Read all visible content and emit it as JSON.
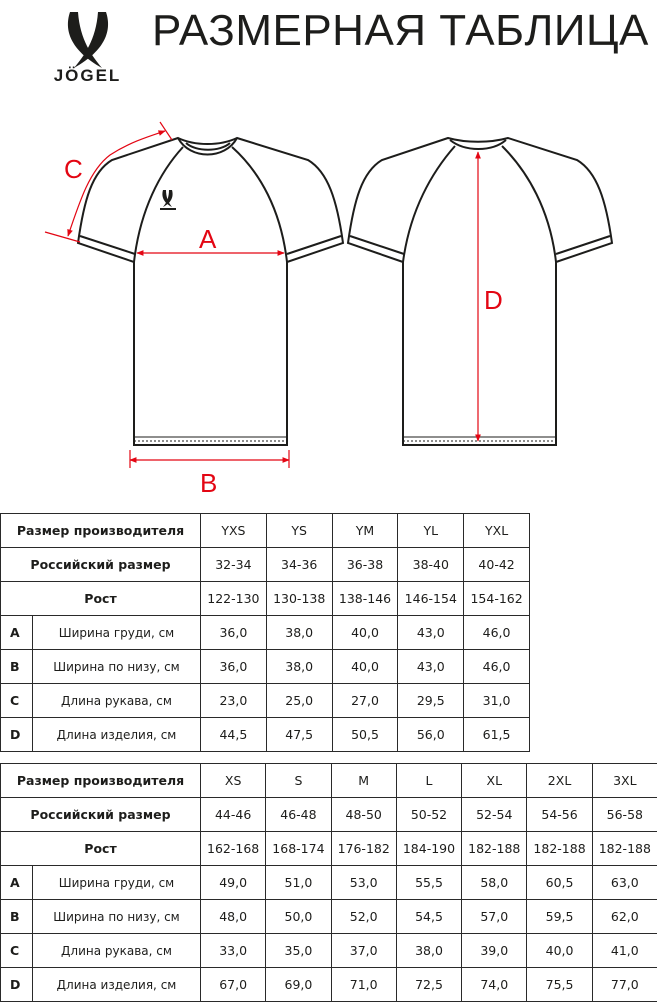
{
  "brand": {
    "logo_text": "JÖGEL"
  },
  "title": "РАЗМЕРНАЯ ТАБЛИЦА",
  "diagram": {
    "labels": {
      "a": "A",
      "b": "B",
      "c": "C",
      "d": "D"
    },
    "measure_color": "#e30613"
  },
  "row_labels": {
    "maker_size": "Размер производителя",
    "russian_size": "Российский размер",
    "height": "Рост",
    "measures": [
      {
        "letter": "A",
        "name": "Ширина груди, см"
      },
      {
        "letter": "B",
        "name": "Ширина по низу, см"
      },
      {
        "letter": "C",
        "name": "Длина рукава, см"
      },
      {
        "letter": "D",
        "name": "Длина изделия, см"
      }
    ]
  },
  "tables": [
    {
      "sizes": [
        "YXS",
        "YS",
        "YM",
        "YL",
        "YXL"
      ],
      "russian": [
        "32-34",
        "34-36",
        "36-38",
        "38-40",
        "40-42"
      ],
      "height": [
        "122-130",
        "130-138",
        "138-146",
        "146-154",
        "154-162"
      ],
      "values": [
        [
          "36,0",
          "38,0",
          "40,0",
          "43,0",
          "46,0"
        ],
        [
          "36,0",
          "38,0",
          "40,0",
          "43,0",
          "46,0"
        ],
        [
          "23,0",
          "25,0",
          "27,0",
          "29,5",
          "31,0"
        ],
        [
          "44,5",
          "47,5",
          "50,5",
          "56,0",
          "61,5"
        ]
      ]
    },
    {
      "sizes": [
        "XS",
        "S",
        "M",
        "L",
        "XL",
        "2XL",
        "3XL"
      ],
      "russian": [
        "44-46",
        "46-48",
        "48-50",
        "50-52",
        "52-54",
        "54-56",
        "56-58"
      ],
      "height": [
        "162-168",
        "168-174",
        "176-182",
        "184-190",
        "182-188",
        "182-188",
        "182-188"
      ],
      "values": [
        [
          "49,0",
          "51,0",
          "53,0",
          "55,5",
          "58,0",
          "60,5",
          "63,0"
        ],
        [
          "48,0",
          "50,0",
          "52,0",
          "54,5",
          "57,0",
          "59,5",
          "62,0"
        ],
        [
          "33,0",
          "35,0",
          "37,0",
          "38,0",
          "39,0",
          "40,0",
          "41,0"
        ],
        [
          "67,0",
          "69,0",
          "71,0",
          "72,5",
          "74,0",
          "75,5",
          "77,0"
        ]
      ]
    }
  ]
}
